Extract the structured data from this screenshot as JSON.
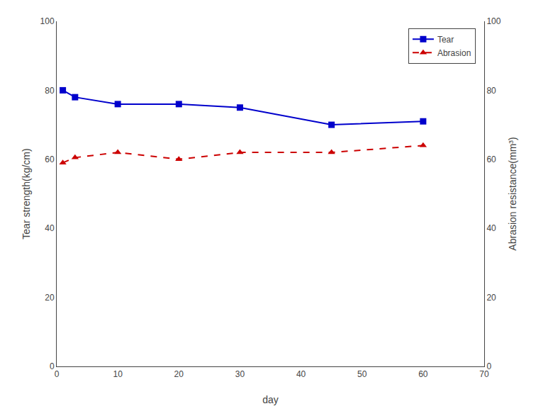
{
  "chart_data": {
    "type": "line",
    "xlabel": "day",
    "ylabel": "Tear strength(kg/cm)",
    "y2label": "Abrasion resistance(mm³)",
    "x": [
      1,
      3,
      10,
      20,
      30,
      45,
      60
    ],
    "series": [
      {
        "name": "Tear",
        "color": "#0000cc",
        "values": [
          80,
          78,
          76,
          76,
          75,
          70,
          71
        ],
        "marker": "square",
        "line_style": "solid"
      },
      {
        "name": "Abrasion",
        "color": "#cc0000",
        "values": [
          59,
          60.5,
          62,
          60,
          62,
          62,
          64
        ],
        "marker": "triangle-up",
        "line_style": "dashed",
        "axis": "y2"
      }
    ],
    "xlim": [
      0,
      70
    ],
    "xticks": [
      0,
      10,
      20,
      30,
      40,
      50,
      60,
      70
    ],
    "ylim": [
      0,
      100
    ],
    "yticks": [
      0,
      20,
      40,
      60,
      80,
      100
    ],
    "y2lim": [
      0,
      100
    ],
    "y2ticks": [
      0,
      20,
      40,
      60,
      80,
      100
    ],
    "legend": "upper right",
    "grid": false
  }
}
